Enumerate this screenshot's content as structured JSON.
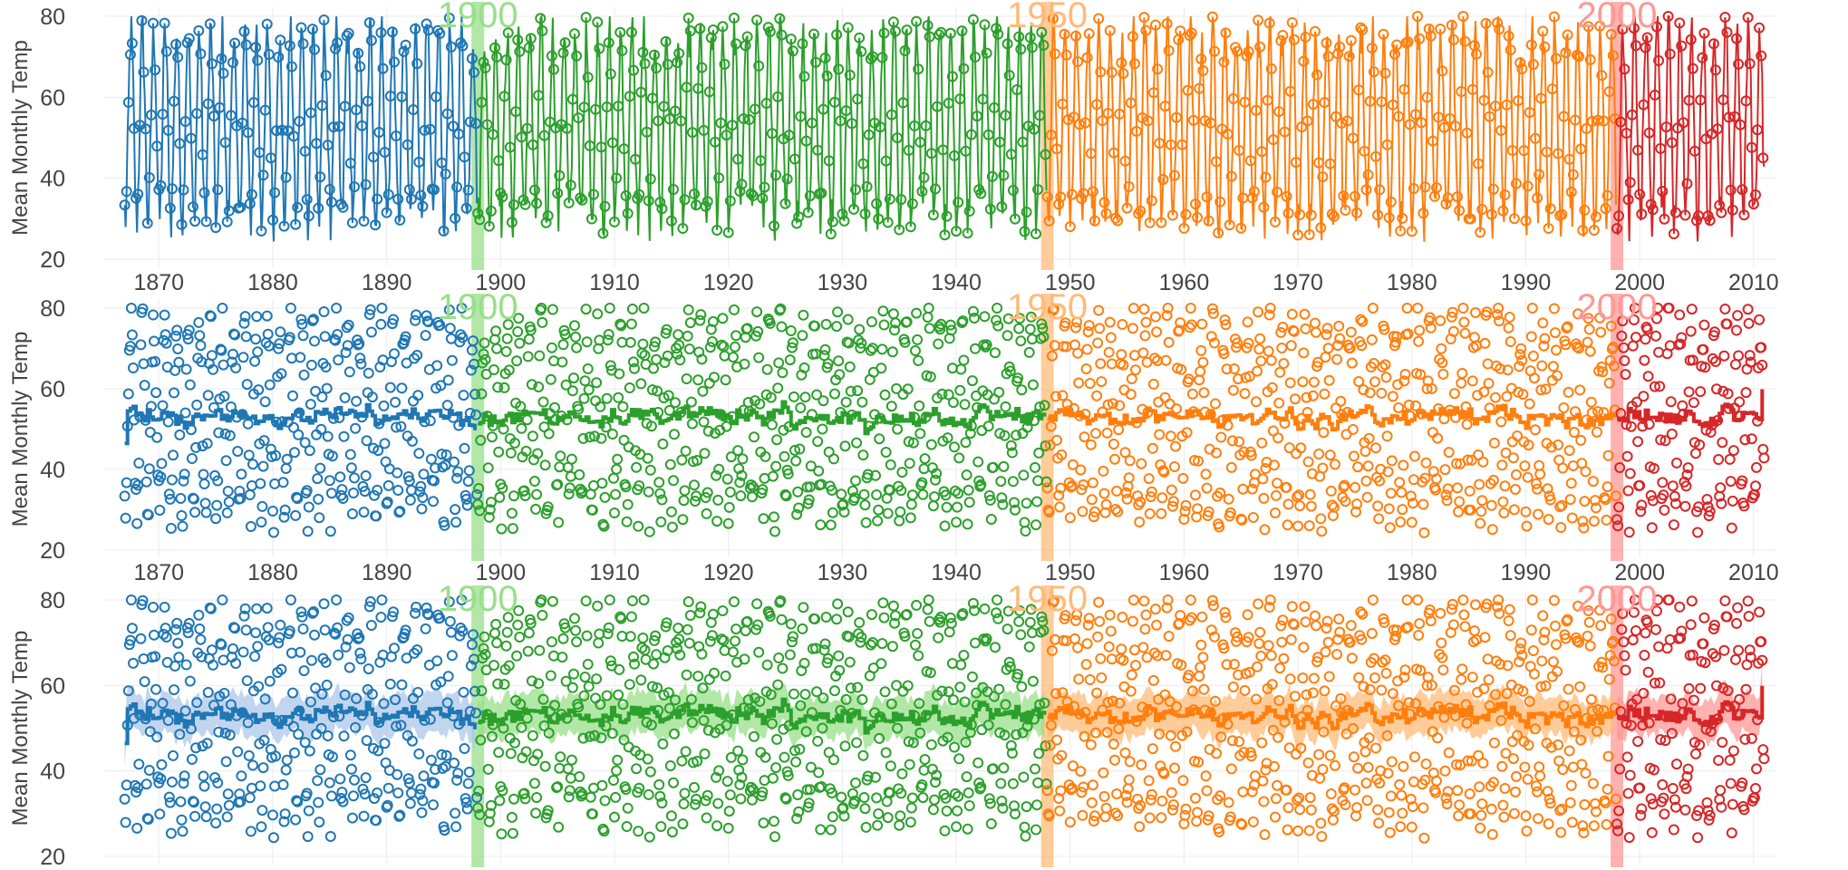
{
  "colors": {
    "era_1850": "#1f77b4",
    "era_1900": "#2ca02c",
    "era_1950": "#ff7f0e",
    "era_2000": "#d62728",
    "band_1850": "#aec7e8",
    "band_1900": "#98df8a",
    "band_1950": "#ffbb78",
    "band_2000": "#ff9896"
  },
  "chart_data": [
    {
      "type": "line",
      "panel": "top",
      "description": "monthly temperature series connected by lines with circle markers, colored by era",
      "ylabel": "Mean Monthly Temp",
      "xlabel": "",
      "xlim": [
        1866,
        2012
      ],
      "ylim": [
        20,
        80
      ],
      "yticks": [
        "20",
        "40",
        "60",
        "80"
      ],
      "xticks": [
        "1870",
        "1880",
        "1890",
        "1900",
        "1910",
        "1920",
        "1930",
        "1940",
        "1950",
        "1960",
        "1970",
        "1980",
        "1990",
        "2000",
        "2010"
      ],
      "era_markers": [
        {
          "label": "1900",
          "x": 1898
        },
        {
          "label": "1950",
          "x": 1948
        },
        {
          "label": "2000",
          "x": 1998
        }
      ],
      "series": [
        {
          "era": "1850",
          "x_start": 1867,
          "x_end": 1898
        },
        {
          "era": "1900",
          "x_start": 1898,
          "x_end": 1948
        },
        {
          "era": "1950",
          "x_start": 1948,
          "x_end": 1998
        },
        {
          "era": "2000",
          "x_start": 1998,
          "x_end": 2011
        }
      ]
    },
    {
      "type": "scatter",
      "panel": "middle",
      "description": "monthly temperature circles with running mean line, colored by era",
      "ylabel": "Mean Monthly Temp",
      "xlabel": "",
      "xlim": [
        1866,
        2012
      ],
      "ylim": [
        20,
        80
      ],
      "yticks": [
        "20",
        "40",
        "60",
        "80"
      ],
      "xticks": [
        "1870",
        "1880",
        "1890",
        "1900",
        "1910",
        "1920",
        "1930",
        "1940",
        "1950",
        "1960",
        "1970",
        "1980",
        "1990",
        "2000",
        "2010"
      ],
      "era_markers": [
        {
          "label": "1900",
          "x": 1898
        },
        {
          "label": "1950",
          "x": 1948
        },
        {
          "label": "2000",
          "x": 1998
        }
      ],
      "running_mean_level": 54
    },
    {
      "type": "scatter",
      "panel": "bottom",
      "description": "monthly temperature circles with running mean line and shaded band, colored by era",
      "ylabel": "Mean Monthly Temp",
      "xlabel": "",
      "xlim": [
        1866,
        2012
      ],
      "ylim": [
        20,
        80
      ],
      "yticks": [
        "20",
        "40",
        "60",
        "80"
      ],
      "xticks": [],
      "era_markers": [
        {
          "label": "1900",
          "x": 1898
        },
        {
          "label": "1950",
          "x": 1948
        },
        {
          "label": "2000",
          "x": 1998
        }
      ],
      "running_mean_level": 54,
      "band_halfwidth": 4.5
    }
  ]
}
